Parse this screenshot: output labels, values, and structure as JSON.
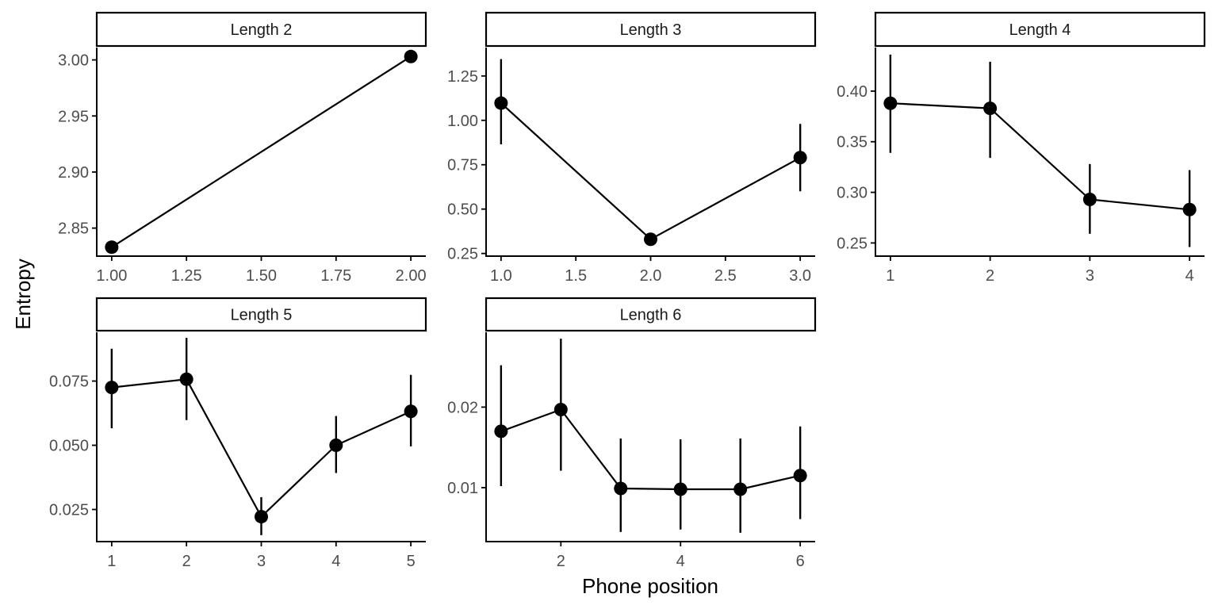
{
  "chart_data": {
    "type": "line",
    "xlabel": "Phone position",
    "ylabel": "Entropy",
    "colors": {
      "line": "#000000",
      "point": "#000000",
      "axis": "#000000",
      "tick_text": "#4d4d4d",
      "strip_fill": "#ffffff"
    },
    "grid": false,
    "panels": [
      {
        "label": "Length 2",
        "x": [
          1,
          2
        ],
        "y": [
          2.833,
          3.003
        ],
        "err": null,
        "xlim": [
          0.95,
          2.05
        ],
        "ylim": [
          2.825,
          3.011
        ],
        "xticks": [
          1.0,
          1.25,
          1.5,
          1.75,
          2.0
        ],
        "xtick_labels": [
          "1.00",
          "1.25",
          "1.50",
          "1.75",
          "2.00"
        ],
        "yticks": [
          2.85,
          2.9,
          2.95,
          3.0
        ],
        "ytick_labels": [
          "2.85",
          "2.90",
          "2.95",
          "3.00"
        ]
      },
      {
        "label": "Length 3",
        "x": [
          1,
          2,
          3
        ],
        "y": [
          1.097,
          0.33,
          0.79
        ],
        "err": [
          [
            0.865,
            1.345
          ],
          [
            0.31,
            0.35
          ],
          [
            0.6,
            0.98
          ]
        ],
        "xlim": [
          0.9,
          3.1
        ],
        "ylim": [
          0.235,
          1.41
        ],
        "xticks": [
          1.0,
          1.5,
          2.0,
          2.5,
          3.0
        ],
        "xtick_labels": [
          "1.0",
          "1.5",
          "2.0",
          "2.5",
          "3.0"
        ],
        "yticks": [
          0.25,
          0.5,
          0.75,
          1.0,
          1.25
        ],
        "ytick_labels": [
          "0.25",
          "0.50",
          "0.75",
          "1.00",
          "1.25"
        ]
      },
      {
        "label": "Length 4",
        "x": [
          1,
          2,
          3,
          4
        ],
        "y": [
          0.388,
          0.383,
          0.293,
          0.283
        ],
        "err": [
          [
            0.339,
            0.436
          ],
          [
            0.334,
            0.429
          ],
          [
            0.259,
            0.328
          ],
          [
            0.246,
            0.322
          ]
        ],
        "xlim": [
          0.85,
          4.15
        ],
        "ylim": [
          0.237,
          0.443
        ],
        "xticks": [
          1,
          2,
          3,
          4
        ],
        "xtick_labels": [
          "1",
          "2",
          "3",
          "4"
        ],
        "yticks": [
          0.25,
          0.3,
          0.35,
          0.4
        ],
        "ytick_labels": [
          "0.25",
          "0.30",
          "0.35",
          "0.40"
        ]
      },
      {
        "label": "Length 5",
        "x": [
          1,
          2,
          3,
          4,
          5
        ],
        "y": [
          0.0725,
          0.0757,
          0.0222,
          0.05,
          0.0632
        ],
        "err": [
          [
            0.0566,
            0.0876
          ],
          [
            0.0598,
            0.0918
          ],
          [
            0.015,
            0.0298
          ],
          [
            0.0392,
            0.0614
          ],
          [
            0.0496,
            0.0774
          ]
        ],
        "xlim": [
          0.8,
          5.2
        ],
        "ylim": [
          0.0125,
          0.094
        ],
        "xticks": [
          1,
          2,
          3,
          4,
          5
        ],
        "xtick_labels": [
          "1",
          "2",
          "3",
          "4",
          "5"
        ],
        "yticks": [
          0.025,
          0.05,
          0.075
        ],
        "ytick_labels": [
          "0.025",
          "0.050",
          "0.075"
        ]
      },
      {
        "label": "Length 6",
        "x": [
          1,
          2,
          3,
          4,
          5,
          6
        ],
        "y": [
          0.017,
          0.0197,
          0.0099,
          0.0098,
          0.0098,
          0.0115
        ],
        "err": [
          [
            0.0102,
            0.0252
          ],
          [
            0.0121,
            0.0285
          ],
          [
            0.0045,
            0.0161
          ],
          [
            0.0048,
            0.016
          ],
          [
            0.0044,
            0.0161
          ],
          [
            0.0061,
            0.0176
          ]
        ],
        "xlim": [
          0.75,
          6.25
        ],
        "ylim": [
          0.0033,
          0.0293
        ],
        "xticks": [
          2,
          4,
          6
        ],
        "xtick_labels": [
          "2",
          "4",
          "6"
        ],
        "yticks": [
          0.01,
          0.02
        ],
        "ytick_labels": [
          "0.01",
          "0.02"
        ]
      }
    ]
  }
}
